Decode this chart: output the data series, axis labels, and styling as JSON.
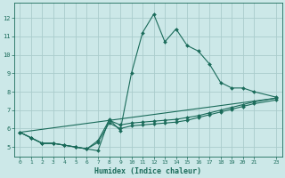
{
  "xlabel": "Humidex (Indice chaleur)",
  "background_color": "#cce8e8",
  "grid_color": "#aacccc",
  "line_color": "#1a6b5a",
  "xlim": [
    -0.5,
    23.5
  ],
  "ylim": [
    4.5,
    12.8
  ],
  "xticks": [
    0,
    1,
    2,
    3,
    4,
    5,
    6,
    7,
    8,
    9,
    10,
    11,
    12,
    13,
    14,
    15,
    16,
    17,
    18,
    19,
    20,
    21,
    23
  ],
  "yticks": [
    5,
    6,
    7,
    8,
    9,
    10,
    11,
    12
  ],
  "series": [
    {
      "x": [
        0,
        1,
        2,
        3,
        4,
        5,
        6,
        7,
        8,
        9,
        10,
        11,
        12,
        13,
        14,
        15,
        16,
        17,
        18,
        19,
        20,
        21,
        23
      ],
      "y": [
        5.8,
        5.5,
        5.2,
        5.2,
        5.1,
        5.0,
        4.9,
        4.8,
        6.5,
        5.9,
        9.0,
        11.2,
        12.2,
        10.7,
        11.4,
        10.5,
        10.2,
        9.5,
        8.5,
        8.2,
        8.2,
        8.0,
        7.7
      ]
    },
    {
      "x": [
        0,
        1,
        2,
        3,
        4,
        5,
        6,
        7,
        8,
        9,
        10,
        11,
        12,
        13,
        14,
        15,
        16,
        17,
        18,
        19,
        20,
        21,
        23
      ],
      "y": [
        5.8,
        5.5,
        5.2,
        5.2,
        5.1,
        5.0,
        4.9,
        5.35,
        6.45,
        6.2,
        6.3,
        6.35,
        6.4,
        6.45,
        6.5,
        6.6,
        6.7,
        6.85,
        7.0,
        7.15,
        7.3,
        7.45,
        7.65
      ]
    },
    {
      "x": [
        0,
        1,
        2,
        3,
        4,
        5,
        6,
        7,
        8,
        9,
        10,
        11,
        12,
        13,
        14,
        15,
        16,
        17,
        18,
        19,
        20,
        21,
        23
      ],
      "y": [
        5.8,
        5.5,
        5.2,
        5.2,
        5.1,
        5.0,
        4.9,
        5.25,
        6.3,
        6.0,
        6.15,
        6.2,
        6.25,
        6.3,
        6.35,
        6.45,
        6.6,
        6.75,
        6.9,
        7.05,
        7.2,
        7.35,
        7.55
      ]
    },
    {
      "x": [
        0,
        23
      ],
      "y": [
        5.8,
        7.65
      ]
    }
  ]
}
